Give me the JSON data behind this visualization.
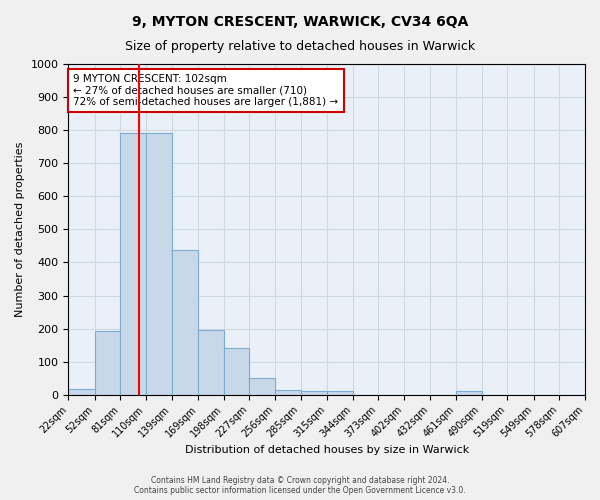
{
  "title1": "9, MYTON CRESCENT, WARWICK, CV34 6QA",
  "title2": "Size of property relative to detached houses in Warwick",
  "xlabel": "Distribution of detached houses by size in Warwick",
  "ylabel": "Number of detached properties",
  "bin_edges": [
    22,
    52,
    81,
    110,
    139,
    169,
    198,
    227,
    256,
    285,
    315,
    344,
    373,
    402,
    432,
    461,
    490,
    519,
    549,
    578,
    607
  ],
  "bar_heights": [
    18,
    192,
    790,
    790,
    438,
    195,
    140,
    50,
    15,
    10,
    10,
    0,
    0,
    0,
    0,
    10,
    0,
    0,
    0,
    0
  ],
  "bar_color": "#c8d8e8",
  "bar_edgecolor": "#7aadcf",
  "grid_color": "#d0d8e0",
  "background_color": "#eaf0f8",
  "red_line_x": 102,
  "annotation_text": "9 MYTON CRESCENT: 102sqm\n← 27% of detached houses are smaller (710)\n72% of semi-detached houses are larger (1,881) →",
  "annotation_box_color": "#ffffff",
  "annotation_border_color": "#cc0000",
  "ylim": [
    0,
    1000
  ],
  "yticks": [
    0,
    100,
    200,
    300,
    400,
    500,
    600,
    700,
    800,
    900,
    1000
  ],
  "footer_text": "Contains HM Land Registry data © Crown copyright and database right 2024.\nContains public sector information licensed under the Open Government Licence v3.0."
}
